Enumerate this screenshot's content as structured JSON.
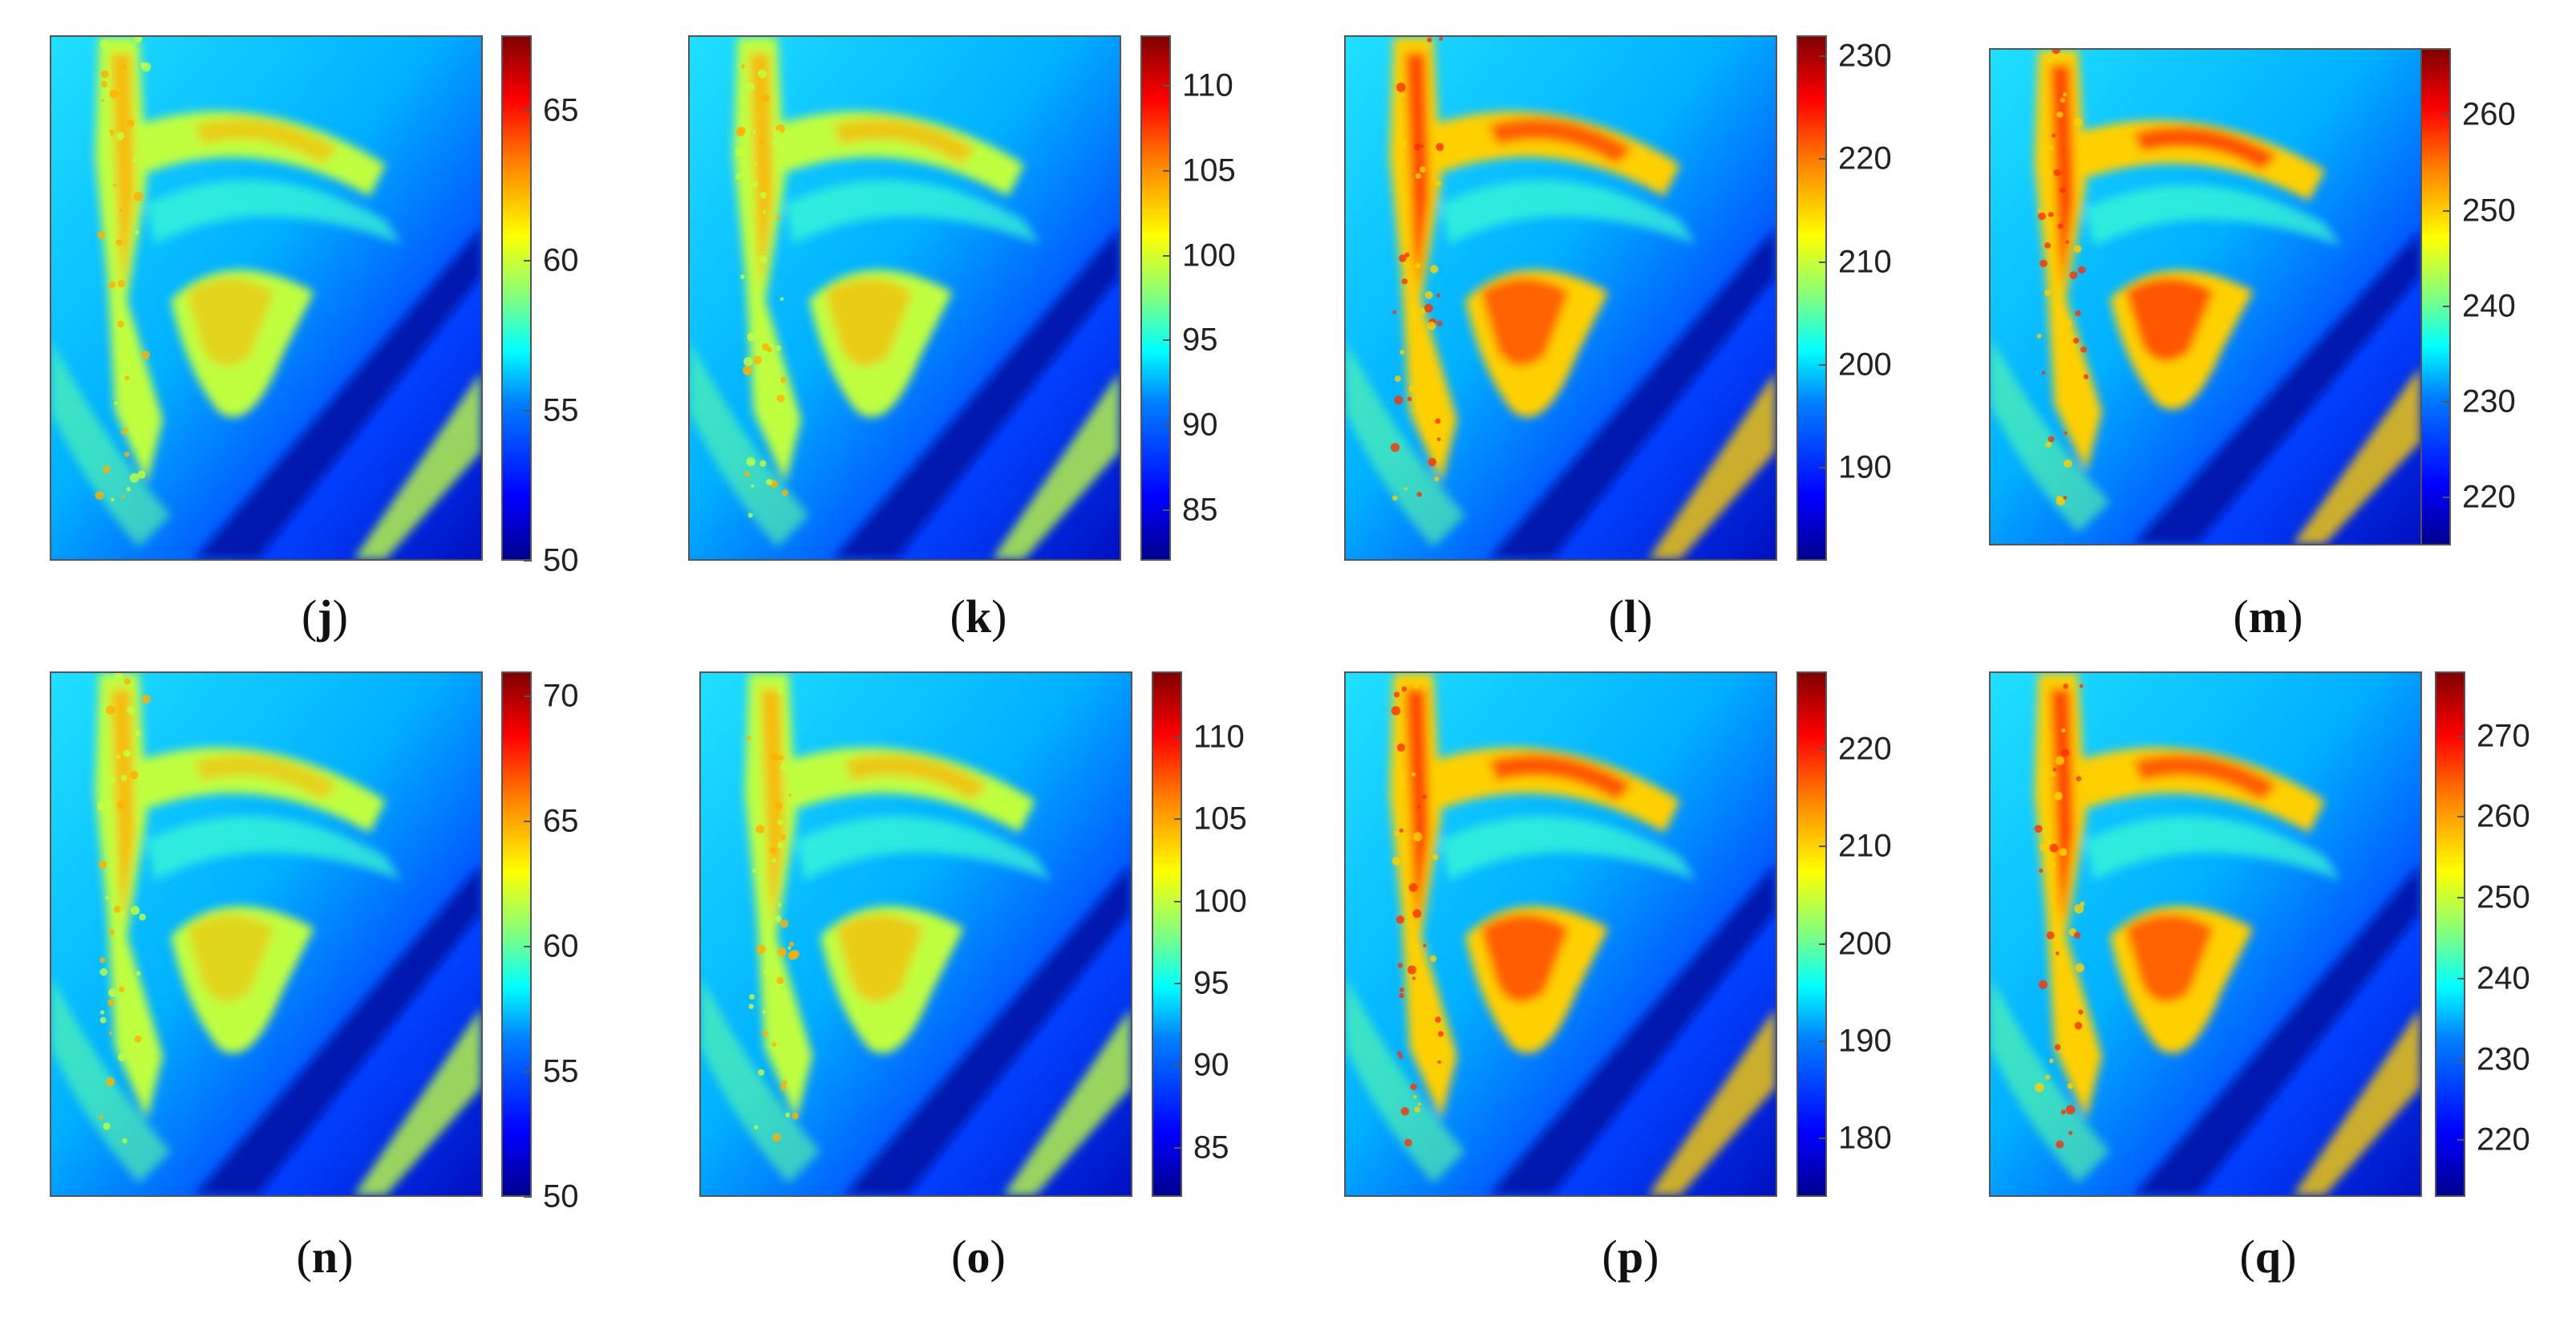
{
  "panels": [
    {
      "label": "j",
      "min": 50,
      "max": 67.5,
      "ticks": [
        50,
        55,
        60,
        65
      ],
      "warmth": 0.35
    },
    {
      "label": "k",
      "min": 82,
      "max": 113,
      "ticks": [
        85,
        90,
        95,
        100,
        105,
        110
      ],
      "warmth": 0.5
    },
    {
      "label": "l",
      "min": 181,
      "max": 232,
      "ticks": [
        190,
        200,
        210,
        220,
        230
      ],
      "warmth": 0.55
    },
    {
      "label": "m",
      "min": 215,
      "max": 267,
      "ticks": [
        220,
        230,
        240,
        250,
        260
      ],
      "warmth": 0.65
    },
    {
      "label": "n",
      "min": 50,
      "max": 71,
      "ticks": [
        50,
        55,
        60,
        65,
        70
      ],
      "warmth": 0.3
    },
    {
      "label": "o",
      "min": 82,
      "max": 114,
      "ticks": [
        85,
        90,
        95,
        100,
        105,
        110
      ],
      "warmth": 0.5
    },
    {
      "label": "p",
      "min": 174,
      "max": 228,
      "ticks": [
        180,
        190,
        200,
        210,
        220
      ],
      "warmth": 0.6
    },
    {
      "label": "q",
      "min": 213,
      "max": 278,
      "ticks": [
        220,
        230,
        240,
        250,
        260,
        270
      ],
      "warmth": 0.55
    }
  ],
  "captions": {
    "j": {
      "open": "(",
      "letter": "j",
      "close": ")"
    },
    "k": {
      "open": "(",
      "letter": "k",
      "close": ")"
    },
    "l": {
      "open": "(",
      "letter": "l",
      "close": ")"
    },
    "m": {
      "open": "(",
      "letter": "m",
      "close": ")"
    },
    "n": {
      "open": "(",
      "letter": "n",
      "close": ")"
    },
    "o": {
      "open": "(",
      "letter": "o",
      "close": ")"
    },
    "p": {
      "open": "(",
      "letter": "p",
      "close": ")"
    },
    "q": {
      "open": "(",
      "letter": "q",
      "close": ")"
    }
  },
  "colors": {
    "low": "#00008f",
    "mid": "#00ffff",
    "high": "#800000"
  }
}
